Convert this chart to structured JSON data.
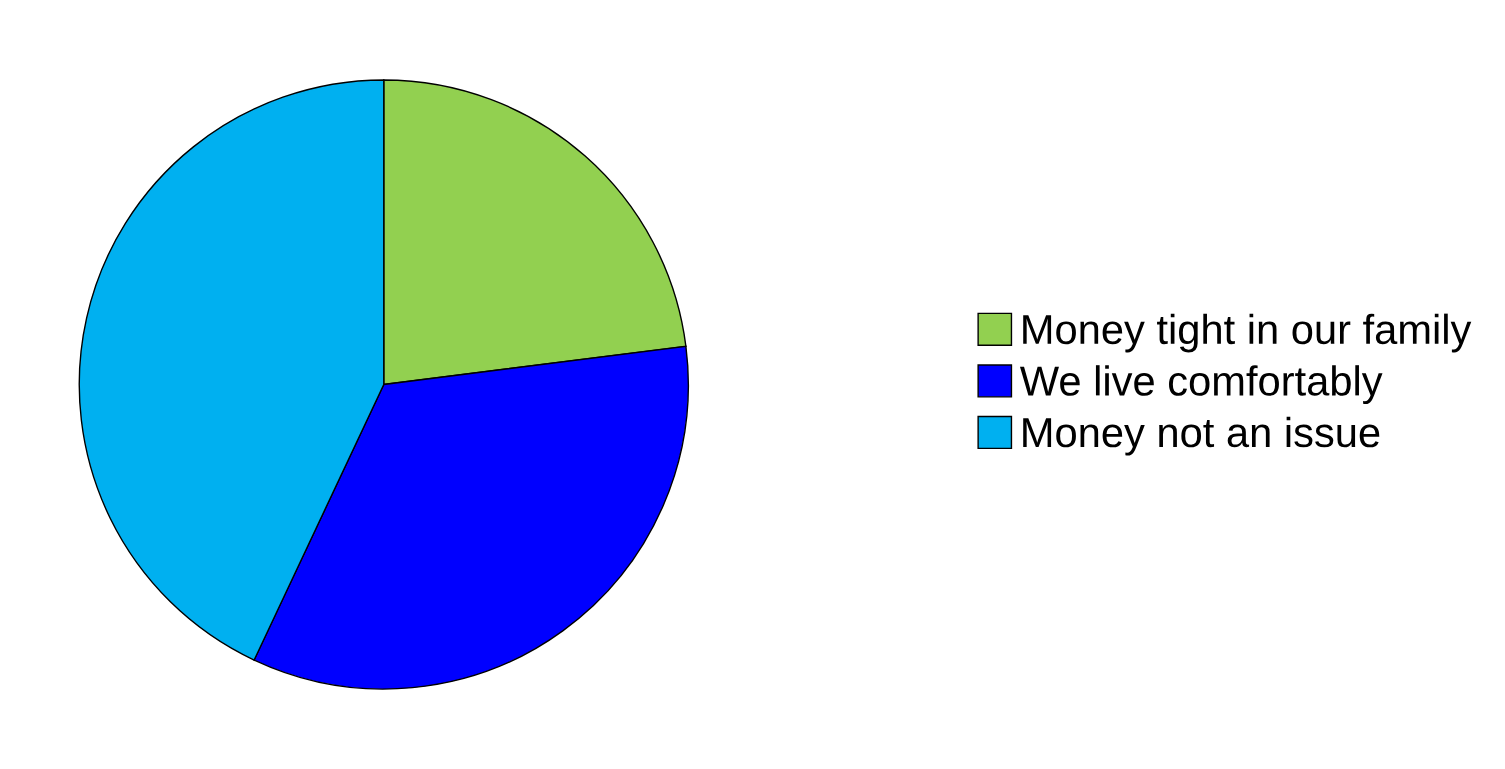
{
  "chart_data": {
    "type": "pie",
    "categories": [
      "Money tight in our family",
      "We live comfortably",
      "Money not an issue"
    ],
    "values": [
      23,
      34,
      43
    ],
    "colors": [
      "#92d050",
      "#0000ff",
      "#00b0f0"
    ],
    "legend": "right"
  }
}
